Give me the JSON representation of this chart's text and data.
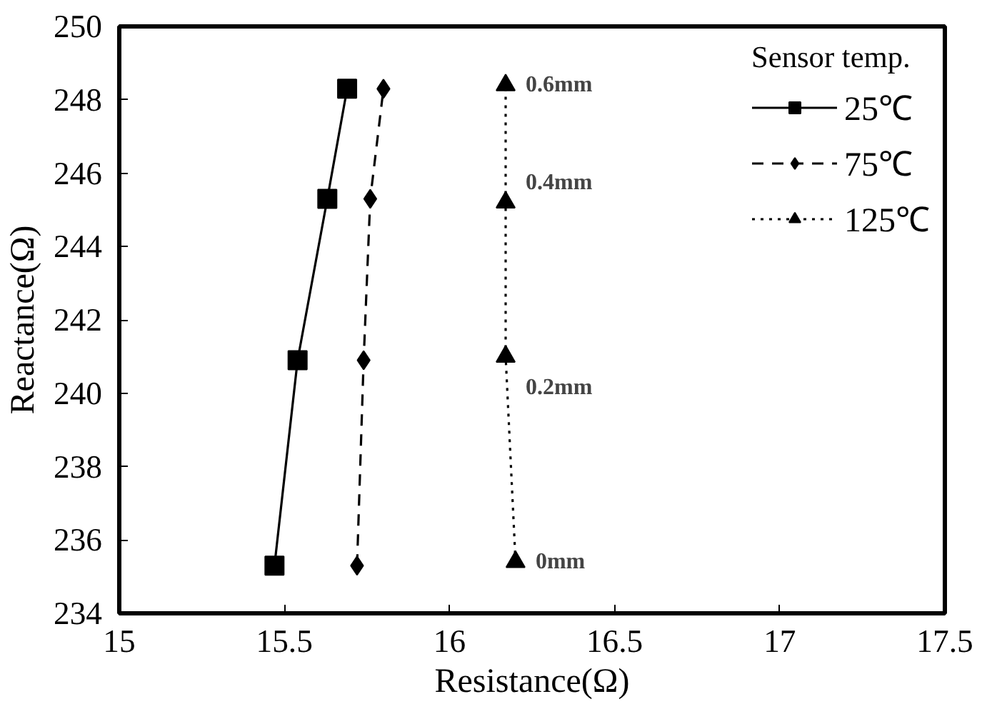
{
  "chart_data": {
    "type": "line",
    "xlabel": "Resistance(Ω)",
    "ylabel": "Reactance(Ω)",
    "legend_title": "Sensor temp.",
    "xlim": [
      15,
      17.5
    ],
    "xticks": [
      15,
      15.5,
      16,
      16.5,
      17,
      17.5
    ],
    "ylim": [
      234,
      250
    ],
    "yticks": [
      234,
      236,
      238,
      240,
      242,
      244,
      246,
      248,
      250
    ],
    "grid": false,
    "legend": "top right",
    "series": [
      {
        "name": "25℃",
        "color": "#000000",
        "marker": "square",
        "line_style": "solid",
        "x": [
          15.47,
          15.54,
          15.63,
          15.69
        ],
        "values": [
          235.3,
          240.9,
          245.3,
          248.3
        ]
      },
      {
        "name": "75℃",
        "color": "#000000",
        "marker": "diamond",
        "line_style": "dashed",
        "x": [
          15.72,
          15.74,
          15.76,
          15.8
        ],
        "values": [
          235.3,
          240.9,
          245.3,
          248.3
        ]
      },
      {
        "name": "125℃",
        "color": "#000000",
        "marker": "triangle",
        "line_style": "dotted",
        "x": [
          16.2,
          16.17,
          16.17,
          16.17
        ],
        "values": [
          235.4,
          241.0,
          245.2,
          248.4
        ]
      }
    ],
    "annotations": [
      "0mm",
      "0.2mm",
      "0.4mm",
      "0.6mm"
    ]
  }
}
